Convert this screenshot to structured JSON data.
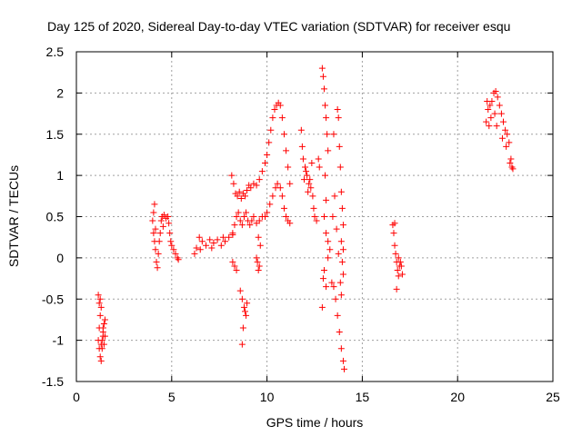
{
  "chart_data": {
    "type": "scatter",
    "title": "Day 125 of 2020, Sidereal Day-to-day VTEC variation (SDTVAR) for receiver esqu",
    "xlabel": "GPS time / hours",
    "ylabel": "SDTVAR / TECUs",
    "xlim": [
      0,
      25
    ],
    "ylim": [
      -1.5,
      2.5
    ],
    "xticks": [
      0,
      5,
      10,
      15,
      20,
      25
    ],
    "xtick_labels": [
      "0",
      "5",
      "10",
      "15",
      "20",
      "25"
    ],
    "yticks": [
      -1.5,
      -1,
      -0.5,
      0,
      0.5,
      1,
      1.5,
      2,
      2.5
    ],
    "ytick_labels": [
      "-1.5",
      "-1",
      "-0.5",
      "0",
      "0.5",
      "1",
      "1.5",
      "2",
      "2.5"
    ],
    "grid": true,
    "marker": "+",
    "color": "#ff0000",
    "series": [
      {
        "name": "SDTVAR",
        "points": [
          [
            1.15,
            -0.45
          ],
          [
            1.2,
            -0.55
          ],
          [
            1.25,
            -0.7
          ],
          [
            1.2,
            -0.85
          ],
          [
            1.15,
            -1.0
          ],
          [
            1.2,
            -1.1
          ],
          [
            1.25,
            -1.2
          ],
          [
            1.3,
            -1.25
          ],
          [
            1.35,
            -1.1
          ],
          [
            1.4,
            -0.95
          ],
          [
            1.45,
            -0.8
          ],
          [
            1.5,
            -0.75
          ],
          [
            1.4,
            -0.9
          ],
          [
            1.3,
            -1.05
          ],
          [
            1.35,
            -1.0
          ],
          [
            1.45,
            -1.05
          ],
          [
            1.5,
            -0.95
          ],
          [
            1.25,
            -0.5
          ],
          [
            1.3,
            -0.6
          ],
          [
            1.4,
            -0.85
          ],
          [
            4.0,
            0.45
          ],
          [
            4.05,
            0.55
          ],
          [
            4.1,
            0.65
          ],
          [
            4.1,
            0.2
          ],
          [
            4.15,
            0.1
          ],
          [
            4.2,
            -0.05
          ],
          [
            4.25,
            -0.12
          ],
          [
            4.3,
            0.05
          ],
          [
            4.35,
            0.2
          ],
          [
            4.4,
            0.3
          ],
          [
            4.45,
            0.45
          ],
          [
            4.5,
            0.5
          ],
          [
            4.6,
            0.52
          ],
          [
            4.7,
            0.48
          ],
          [
            4.8,
            0.5
          ],
          [
            4.85,
            0.42
          ],
          [
            4.9,
            0.3
          ],
          [
            4.95,
            0.2
          ],
          [
            5.0,
            0.15
          ],
          [
            5.1,
            0.1
          ],
          [
            5.2,
            0.05
          ],
          [
            5.3,
            0.0
          ],
          [
            5.35,
            -0.02
          ],
          [
            4.05,
            0.3
          ],
          [
            4.15,
            0.35
          ],
          [
            4.55,
            0.38
          ],
          [
            6.2,
            0.05
          ],
          [
            6.3,
            0.12
          ],
          [
            6.45,
            0.25
          ],
          [
            6.6,
            0.2
          ],
          [
            6.8,
            0.15
          ],
          [
            7.0,
            0.22
          ],
          [
            7.2,
            0.18
          ],
          [
            7.4,
            0.22
          ],
          [
            7.6,
            0.15
          ],
          [
            7.8,
            0.2
          ],
          [
            8.0,
            0.25
          ],
          [
            8.2,
            0.28
          ],
          [
            6.5,
            0.1
          ],
          [
            7.1,
            0.12
          ],
          [
            7.7,
            0.25
          ],
          [
            8.15,
            1.0
          ],
          [
            8.25,
            0.9
          ],
          [
            8.35,
            0.78
          ],
          [
            8.45,
            0.75
          ],
          [
            8.55,
            0.8
          ],
          [
            8.65,
            0.72
          ],
          [
            8.75,
            0.78
          ],
          [
            8.85,
            0.75
          ],
          [
            8.95,
            0.82
          ],
          [
            9.05,
            0.88
          ],
          [
            9.15,
            0.85
          ],
          [
            9.3,
            0.9
          ],
          [
            9.45,
            0.88
          ],
          [
            9.6,
            0.95
          ],
          [
            9.75,
            1.05
          ],
          [
            9.9,
            1.15
          ],
          [
            10.0,
            1.25
          ],
          [
            10.1,
            1.4
          ],
          [
            10.2,
            1.55
          ],
          [
            10.3,
            1.7
          ],
          [
            10.4,
            1.8
          ],
          [
            10.5,
            1.85
          ],
          [
            10.6,
            1.88
          ],
          [
            10.7,
            1.85
          ],
          [
            10.8,
            1.7
          ],
          [
            10.9,
            1.5
          ],
          [
            11.0,
            1.3
          ],
          [
            11.1,
            1.1
          ],
          [
            11.2,
            0.9
          ],
          [
            8.2,
            0.3
          ],
          [
            8.3,
            0.4
          ],
          [
            8.4,
            0.5
          ],
          [
            8.5,
            0.55
          ],
          [
            8.6,
            0.45
          ],
          [
            8.7,
            0.4
          ],
          [
            8.8,
            0.5
          ],
          [
            8.9,
            0.55
          ],
          [
            9.0,
            0.45
          ],
          [
            9.1,
            0.4
          ],
          [
            9.2,
            0.45
          ],
          [
            9.3,
            0.5
          ],
          [
            9.45,
            0.42
          ],
          [
            9.6,
            0.45
          ],
          [
            9.75,
            0.5
          ],
          [
            9.9,
            0.5
          ],
          [
            10.0,
            0.55
          ],
          [
            10.15,
            0.65
          ],
          [
            10.3,
            0.75
          ],
          [
            10.45,
            0.85
          ],
          [
            10.55,
            0.9
          ],
          [
            10.7,
            0.85
          ],
          [
            10.8,
            0.75
          ],
          [
            10.9,
            0.6
          ],
          [
            11.0,
            0.5
          ],
          [
            11.1,
            0.45
          ],
          [
            11.2,
            0.42
          ],
          [
            8.2,
            -0.05
          ],
          [
            8.3,
            -0.1
          ],
          [
            8.4,
            -0.15
          ],
          [
            8.6,
            -0.4
          ],
          [
            8.7,
            -0.5
          ],
          [
            8.8,
            -0.6
          ],
          [
            8.9,
            -0.7
          ],
          [
            8.75,
            -0.85
          ],
          [
            8.85,
            -0.65
          ],
          [
            8.95,
            -0.55
          ],
          [
            8.7,
            -1.05
          ],
          [
            9.5,
            -0.05
          ],
          [
            9.55,
            -0.15
          ],
          [
            9.6,
            -0.1
          ],
          [
            9.45,
            0.0
          ],
          [
            9.65,
            0.15
          ],
          [
            9.55,
            0.25
          ],
          [
            11.8,
            1.55
          ],
          [
            11.85,
            1.35
          ],
          [
            11.9,
            1.2
          ],
          [
            12.0,
            1.1
          ],
          [
            12.1,
            1.0
          ],
          [
            12.2,
            0.9
          ],
          [
            12.3,
            0.85
          ],
          [
            12.4,
            0.75
          ],
          [
            11.95,
            0.95
          ],
          [
            12.05,
            1.05
          ],
          [
            12.15,
            0.8
          ],
          [
            12.25,
            0.95
          ],
          [
            12.35,
            1.15
          ],
          [
            12.45,
            0.6
          ],
          [
            12.5,
            0.5
          ],
          [
            12.6,
            0.45
          ],
          [
            12.7,
            1.2
          ],
          [
            12.75,
            1.1
          ],
          [
            12.9,
            2.3
          ],
          [
            12.95,
            2.2
          ],
          [
            13.0,
            2.05
          ],
          [
            13.05,
            1.85
          ],
          [
            13.1,
            1.7
          ],
          [
            13.15,
            1.5
          ],
          [
            13.2,
            1.3
          ],
          [
            13.05,
            1.0
          ],
          [
            13.1,
            0.7
          ],
          [
            13.0,
            0.5
          ],
          [
            13.1,
            0.3
          ],
          [
            13.2,
            0.0
          ],
          [
            13.0,
            -0.15
          ],
          [
            13.1,
            -0.35
          ],
          [
            12.9,
            -0.6
          ],
          [
            12.95,
            -0.25
          ],
          [
            13.2,
            0.2
          ],
          [
            13.3,
            0.1
          ],
          [
            13.4,
            -0.3
          ],
          [
            13.5,
            -0.35
          ],
          [
            13.6,
            -0.5
          ],
          [
            13.7,
            -0.7
          ],
          [
            13.8,
            -0.9
          ],
          [
            13.9,
            -1.1
          ],
          [
            14.0,
            -1.25
          ],
          [
            14.05,
            -1.35
          ],
          [
            13.7,
            1.8
          ],
          [
            13.75,
            1.7
          ],
          [
            13.8,
            1.35
          ],
          [
            13.85,
            1.1
          ],
          [
            13.9,
            0.8
          ],
          [
            13.95,
            0.6
          ],
          [
            14.0,
            0.4
          ],
          [
            13.9,
            0.2
          ],
          [
            14.0,
            0.1
          ],
          [
            13.95,
            -0.05
          ],
          [
            14.0,
            -0.2
          ],
          [
            13.85,
            -0.3
          ],
          [
            13.9,
            -0.45
          ],
          [
            13.5,
            1.5
          ],
          [
            13.55,
            0.75
          ],
          [
            13.45,
            0.5
          ],
          [
            13.65,
            0.35
          ],
          [
            13.75,
            0.05
          ],
          [
            16.6,
            0.4
          ],
          [
            16.65,
            0.3
          ],
          [
            16.7,
            0.15
          ],
          [
            16.75,
            0.05
          ],
          [
            16.8,
            -0.05
          ],
          [
            16.85,
            -0.15
          ],
          [
            16.9,
            -0.22
          ],
          [
            16.95,
            -0.1
          ],
          [
            17.0,
            -0.05
          ],
          [
            17.05,
            -0.1
          ],
          [
            17.1,
            -0.2
          ],
          [
            16.8,
            -0.38
          ],
          [
            16.7,
            0.42
          ],
          [
            16.9,
            0.0
          ],
          [
            21.5,
            1.65
          ],
          [
            21.6,
            1.8
          ],
          [
            21.7,
            1.85
          ],
          [
            21.8,
            1.9
          ],
          [
            21.9,
            2.0
          ],
          [
            22.0,
            2.02
          ],
          [
            22.1,
            1.95
          ],
          [
            22.2,
            1.85
          ],
          [
            22.3,
            1.75
          ],
          [
            22.4,
            1.65
          ],
          [
            22.5,
            1.55
          ],
          [
            22.6,
            1.5
          ],
          [
            22.7,
            1.4
          ],
          [
            22.8,
            1.2
          ],
          [
            22.85,
            1.1
          ],
          [
            22.9,
            1.08
          ],
          [
            21.55,
            1.9
          ],
          [
            21.65,
            1.6
          ],
          [
            21.75,
            1.7
          ],
          [
            21.95,
            1.75
          ],
          [
            22.05,
            1.6
          ],
          [
            22.35,
            1.45
          ],
          [
            22.55,
            1.35
          ],
          [
            22.75,
            1.15
          ]
        ]
      }
    ]
  }
}
